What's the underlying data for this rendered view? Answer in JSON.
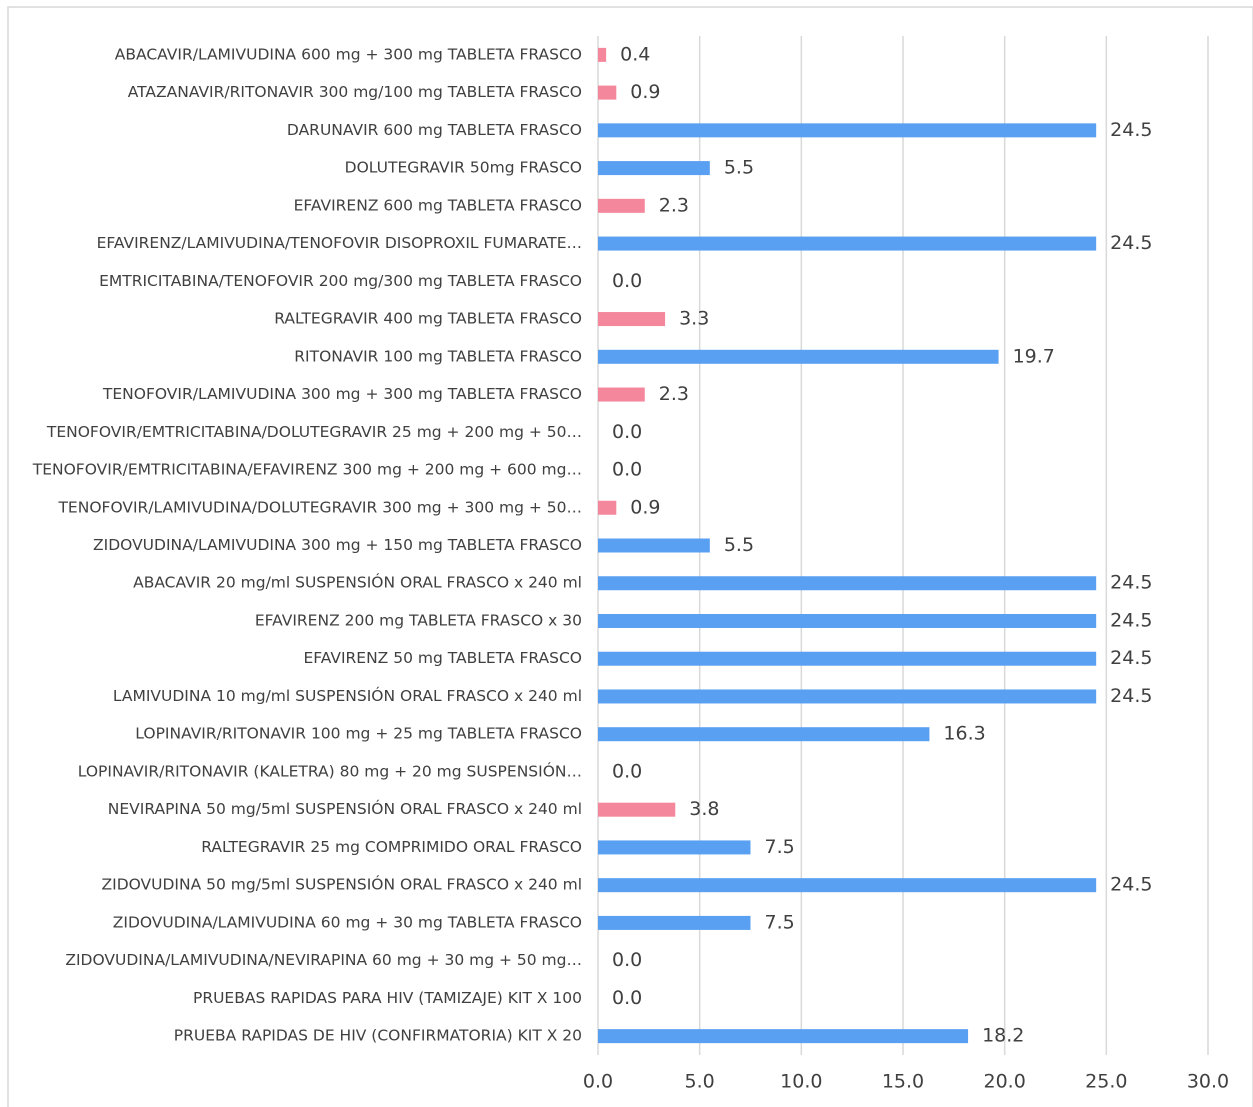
{
  "chart_data": {
    "type": "barh",
    "categories": [
      "ABACAVIR/LAMIVUDINA 600 mg + 300 mg TABLETA FRASCO",
      "ATAZANAVIR/RITONAVIR 300 mg/100 mg TABLETA FRASCO",
      "DARUNAVIR 600 mg TABLETA FRASCO",
      "DOLUTEGRAVIR 50mg FRASCO",
      "EFAVIRENZ 600 mg TABLETA FRASCO",
      "EFAVIRENZ/LAMIVUDINA/TENOFOVIR DISOPROXIL FUMARATE…",
      "EMTRICITABINA/TENOFOVIR 200 mg/300 mg TABLETA FRASCO",
      "RALTEGRAVIR 400 mg TABLETA FRASCO",
      "RITONAVIR 100 mg TABLETA FRASCO",
      "TENOFOVIR/LAMIVUDINA 300 mg + 300 mg TABLETA FRASCO",
      "TENOFOVIR/EMTRICITABINA/DOLUTEGRAVIR 25 mg + 200 mg + 50…",
      "TENOFOVIR/EMTRICITABINA/EFAVIRENZ 300 mg + 200 mg + 600 mg…",
      "TENOFOVIR/LAMIVUDINA/DOLUTEGRAVIR 300 mg + 300 mg + 50…",
      "ZIDOVUDINA/LAMIVUDINA 300 mg + 150 mg TABLETA FRASCO",
      "ABACAVIR 20 mg/ml SUSPENSIÓN ORAL FRASCO x 240 ml",
      "EFAVIRENZ 200 mg TABLETA FRASCO x 30",
      "EFAVIRENZ 50 mg TABLETA FRASCO",
      "LAMIVUDINA 10 mg/ml SUSPENSIÓN ORAL FRASCO x 240 ml",
      "LOPINAVIR/RITONAVIR 100 mg + 25 mg TABLETA FRASCO",
      "LOPINAVIR/RITONAVIR (KALETRA) 80 mg + 20 mg SUSPENSIÓN…",
      "NEVIRAPINA 50 mg/5ml SUSPENSIÓN ORAL FRASCO x 240 ml",
      "RALTEGRAVIR  25 mg  COMPRIMIDO ORAL FRASCO",
      "ZIDOVUDINA 50 mg/5ml SUSPENSIÓN ORAL FRASCO x 240 ml",
      "ZIDOVUDINA/LAMIVUDINA 60 mg + 30 mg TABLETA FRASCO",
      "ZIDOVUDINA/LAMIVUDINA/NEVIRAPINA  60 mg + 30 mg + 50 mg…",
      "PRUEBAS RAPIDAS PARA HIV (TAMIZAJE)  KIT X 100",
      "PRUEBA RAPIDAS DE HIV (CONFIRMATORIA) KIT X 20"
    ],
    "values": [
      0.4,
      0.9,
      24.5,
      5.5,
      2.3,
      24.5,
      0,
      3.3,
      19.7,
      2.3,
      0,
      0,
      0.9,
      5.5,
      24.5,
      24.5,
      24.5,
      24.5,
      16.3,
      0,
      3.8,
      7.5,
      24.5,
      7.5,
      0,
      0,
      18.2
    ],
    "value_labels": [
      "0.4",
      "0.9",
      "24.5",
      "5.5",
      "2.3",
      "24.5",
      "0.0",
      "3.3",
      "19.7",
      "2.3",
      "0.0",
      "0.0",
      "0.9",
      "5.5",
      "24.5",
      "24.5",
      "24.5",
      "24.5",
      "16.3",
      "0.0",
      "3.8",
      "7.5",
      "24.5",
      "7.5",
      "0.0",
      "0.0",
      "18.2"
    ],
    "colors": [
      "#f4879b",
      "#f4879b",
      "#5aa0f2",
      "#5aa0f2",
      "#f4879b",
      "#5aa0f2",
      "#f4879b",
      "#f4879b",
      "#5aa0f2",
      "#f4879b",
      "#f4879b",
      "#f4879b",
      "#f4879b",
      "#5aa0f2",
      "#5aa0f2",
      "#5aa0f2",
      "#5aa0f2",
      "#5aa0f2",
      "#5aa0f2",
      "#f4879b",
      "#f4879b",
      "#5aa0f2",
      "#5aa0f2",
      "#5aa0f2",
      "#f4879b",
      "#f4879b",
      "#5aa0f2"
    ],
    "xlim": [
      0,
      30
    ],
    "xticks": [
      {
        "value": 0,
        "label": "0.0"
      },
      {
        "value": 5,
        "label": "5.0"
      },
      {
        "value": 10,
        "label": "10.0"
      },
      {
        "value": 15,
        "label": "15.0"
      },
      {
        "value": 20,
        "label": "20.0"
      },
      {
        "value": 25,
        "label": "25.0"
      },
      {
        "value": 30,
        "label": "30.0"
      }
    ],
    "grid": true
  }
}
